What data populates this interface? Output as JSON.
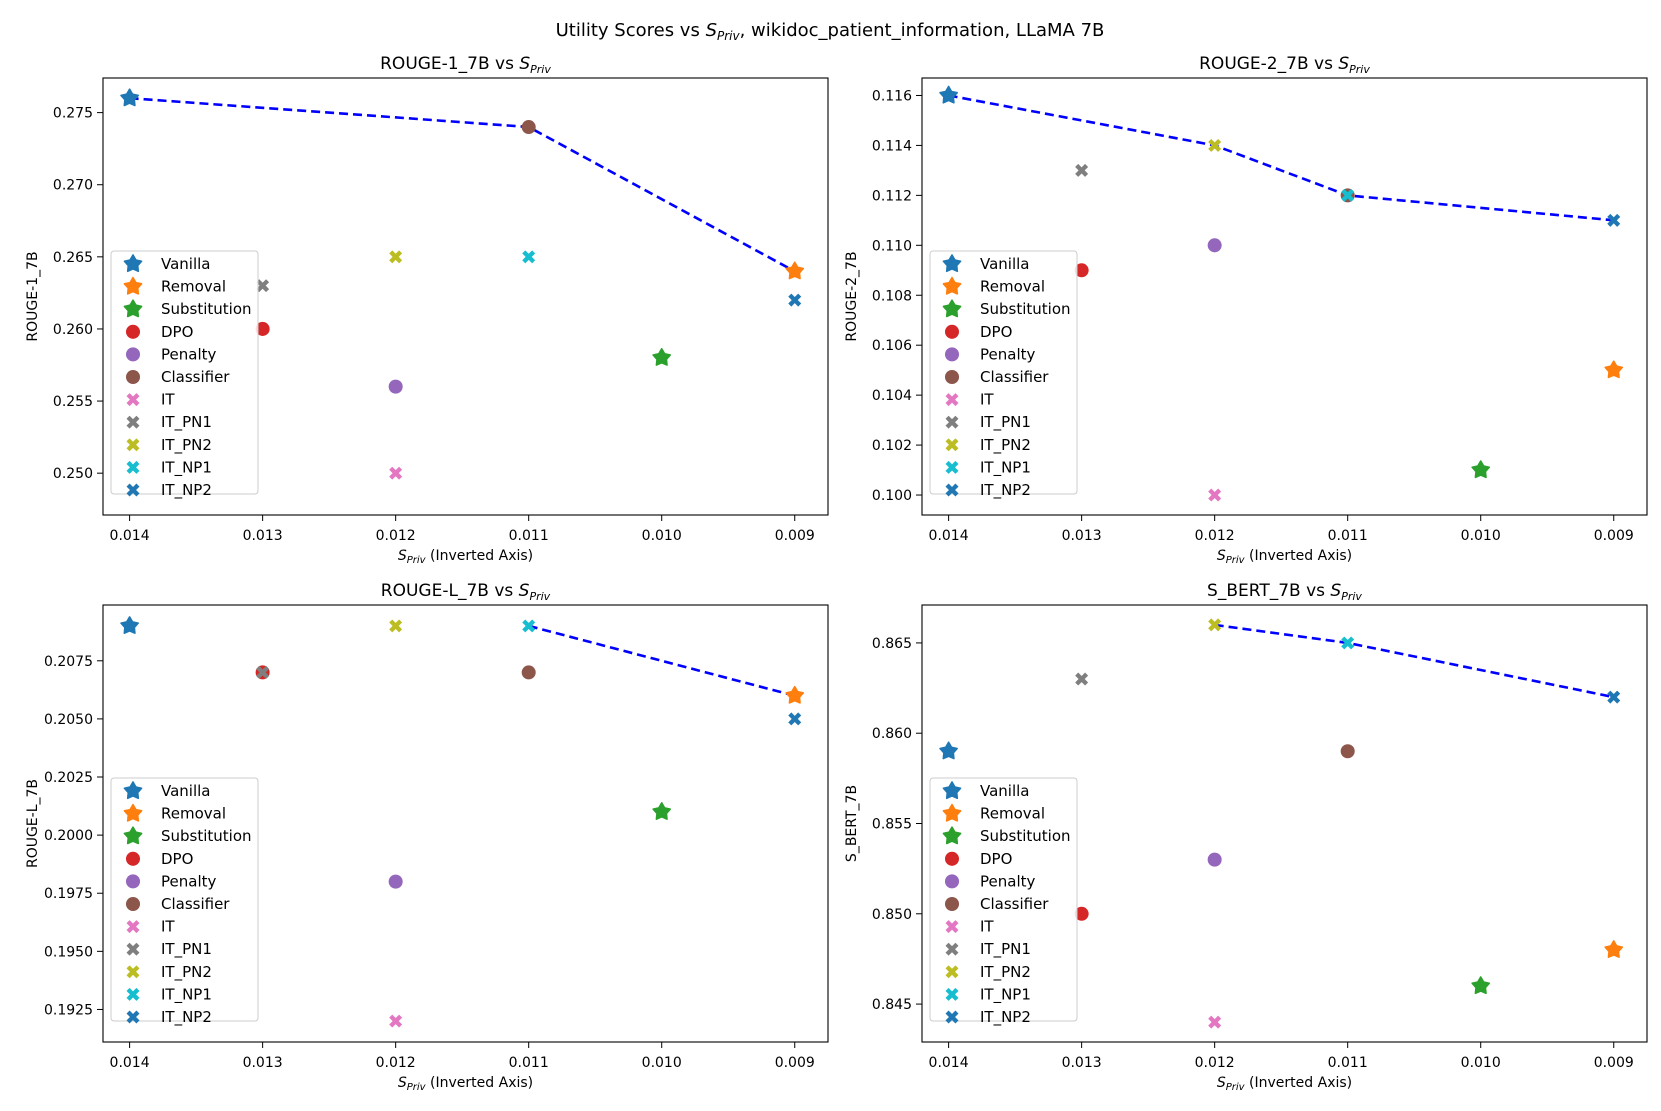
{
  "figure": {
    "suptitle": "Utility Scores vs S_Priv, wikidoc_patient_information, LLaMA 7B",
    "suptitle_parts": {
      "pre": "Utility Scores vs ",
      "sym": "S",
      "sub": "Priv",
      "post": ", wikidoc_patient_information, LLaMA 7B"
    }
  },
  "methods": [
    {
      "name": "Vanilla",
      "color": "#1f77b4",
      "marker": "star"
    },
    {
      "name": "Removal",
      "color": "#ff7f0e",
      "marker": "star"
    },
    {
      "name": "Substitution",
      "color": "#2ca02c",
      "marker": "star"
    },
    {
      "name": "DPO",
      "color": "#d62728",
      "marker": "circle"
    },
    {
      "name": "Penalty",
      "color": "#9467bd",
      "marker": "circle"
    },
    {
      "name": "Classifier",
      "color": "#8c564b",
      "marker": "circle"
    },
    {
      "name": "IT",
      "color": "#e377c2",
      "marker": "x"
    },
    {
      "name": "IT_PN1",
      "color": "#7f7f7f",
      "marker": "x"
    },
    {
      "name": "IT_PN2",
      "color": "#bcbd22",
      "marker": "x"
    },
    {
      "name": "IT_NP1",
      "color": "#17becf",
      "marker": "x"
    },
    {
      "name": "IT_NP2",
      "color": "#1f77b4",
      "marker": "x"
    }
  ],
  "frontier_style": {
    "color": "#0000ff",
    "dash": "dashed"
  },
  "chart_data": [
    {
      "type": "scatter",
      "title": "ROUGE-1_7B vs S_Priv",
      "title_parts": {
        "pre": "ROUGE-1_7B vs ",
        "sym": "S",
        "sub": "Priv"
      },
      "xlabel": "S_Priv (Inverted Axis)",
      "xlabel_parts": {
        "sym": "S",
        "sub": "Priv",
        "post": " (Inverted Axis)"
      },
      "ylabel": "ROUGE-1_7B",
      "x_inverted": true,
      "xlim": [
        0.0142,
        0.00875
      ],
      "xticks": [
        "0.014",
        "0.013",
        "0.012",
        "0.011",
        "0.010",
        "0.009"
      ],
      "ylim": [
        0.2471,
        0.2774
      ],
      "yticks": [
        "0.250",
        "0.255",
        "0.260",
        "0.265",
        "0.270",
        "0.275"
      ],
      "legend": "center-left",
      "points": [
        {
          "series": "Vanilla",
          "x": 0.014,
          "y": 0.276
        },
        {
          "series": "Removal",
          "x": 0.009,
          "y": 0.264
        },
        {
          "series": "Substitution",
          "x": 0.01,
          "y": 0.258
        },
        {
          "series": "DPO",
          "x": 0.013,
          "y": 0.26
        },
        {
          "series": "Penalty",
          "x": 0.012,
          "y": 0.256
        },
        {
          "series": "Classifier",
          "x": 0.011,
          "y": 0.274
        },
        {
          "series": "IT",
          "x": 0.012,
          "y": 0.25
        },
        {
          "series": "IT_PN1",
          "x": 0.013,
          "y": 0.263
        },
        {
          "series": "IT_PN2",
          "x": 0.012,
          "y": 0.265
        },
        {
          "series": "IT_NP1",
          "x": 0.011,
          "y": 0.265
        },
        {
          "series": "IT_NP2",
          "x": 0.009,
          "y": 0.262
        }
      ],
      "frontier": [
        [
          0.014,
          0.276
        ],
        [
          0.011,
          0.274
        ],
        [
          0.009,
          0.264
        ]
      ]
    },
    {
      "type": "scatter",
      "title": "ROUGE-2_7B vs S_Priv",
      "title_parts": {
        "pre": "ROUGE-2_7B vs ",
        "sym": "S",
        "sub": "Priv"
      },
      "xlabel": "S_Priv (Inverted Axis)",
      "xlabel_parts": {
        "sym": "S",
        "sub": "Priv",
        "post": " (Inverted Axis)"
      },
      "ylabel": "ROUGE-2_7B",
      "x_inverted": true,
      "xlim": [
        0.0142,
        0.00875
      ],
      "xticks": [
        "0.014",
        "0.013",
        "0.012",
        "0.011",
        "0.010",
        "0.009"
      ],
      "ylim": [
        0.0992,
        0.1167
      ],
      "yticks": [
        "0.100",
        "0.102",
        "0.104",
        "0.106",
        "0.108",
        "0.110",
        "0.112",
        "0.114",
        "0.116"
      ],
      "legend": "center-left",
      "points": [
        {
          "series": "Vanilla",
          "x": 0.014,
          "y": 0.116
        },
        {
          "series": "Removal",
          "x": 0.009,
          "y": 0.105
        },
        {
          "series": "Substitution",
          "x": 0.01,
          "y": 0.101
        },
        {
          "series": "DPO",
          "x": 0.013,
          "y": 0.109
        },
        {
          "series": "Penalty",
          "x": 0.012,
          "y": 0.11
        },
        {
          "series": "Classifier",
          "x": 0.011,
          "y": 0.112
        },
        {
          "series": "IT",
          "x": 0.012,
          "y": 0.1
        },
        {
          "series": "IT_PN1",
          "x": 0.013,
          "y": 0.113
        },
        {
          "series": "IT_PN2",
          "x": 0.012,
          "y": 0.114
        },
        {
          "series": "IT_NP1",
          "x": 0.011,
          "y": 0.112
        },
        {
          "series": "IT_NP2",
          "x": 0.009,
          "y": 0.111
        }
      ],
      "frontier": [
        [
          0.014,
          0.116
        ],
        [
          0.012,
          0.114
        ],
        [
          0.011,
          0.112
        ],
        [
          0.009,
          0.111
        ]
      ]
    },
    {
      "type": "scatter",
      "title": "ROUGE-L_7B vs S_Priv",
      "title_parts": {
        "pre": "ROUGE-L_7B vs ",
        "sym": "S",
        "sub": "Priv"
      },
      "xlabel": "S_Priv (Inverted Axis)",
      "xlabel_parts": {
        "sym": "S",
        "sub": "Priv",
        "post": " (Inverted Axis)"
      },
      "ylabel": "ROUGE-L_7B",
      "x_inverted": true,
      "xlim": [
        0.0142,
        0.00875
      ],
      "xticks": [
        "0.014",
        "0.013",
        "0.012",
        "0.011",
        "0.010",
        "0.009"
      ],
      "ylim": [
        0.1911,
        0.2099
      ],
      "yticks": [
        "0.1925",
        "0.1950",
        "0.1975",
        "0.2000",
        "0.2025",
        "0.2050",
        "0.2075"
      ],
      "legend": "center-left",
      "points": [
        {
          "series": "Vanilla",
          "x": 0.014,
          "y": 0.209
        },
        {
          "series": "Removal",
          "x": 0.009,
          "y": 0.206
        },
        {
          "series": "Substitution",
          "x": 0.01,
          "y": 0.201
        },
        {
          "series": "DPO",
          "x": 0.013,
          "y": 0.207
        },
        {
          "series": "Penalty",
          "x": 0.012,
          "y": 0.198
        },
        {
          "series": "Classifier",
          "x": 0.011,
          "y": 0.207
        },
        {
          "series": "IT",
          "x": 0.012,
          "y": 0.192
        },
        {
          "series": "IT_PN1",
          "x": 0.013,
          "y": 0.207
        },
        {
          "series": "IT_PN2",
          "x": 0.012,
          "y": 0.209
        },
        {
          "series": "IT_NP1",
          "x": 0.011,
          "y": 0.209
        },
        {
          "series": "IT_NP2",
          "x": 0.009,
          "y": 0.205
        }
      ],
      "frontier": [
        [
          0.011,
          0.209
        ],
        [
          0.009,
          0.206
        ]
      ]
    },
    {
      "type": "scatter",
      "title": "S_BERT_7B vs S_Priv",
      "title_parts": {
        "pre": "S_BERT_7B vs ",
        "sym": "S",
        "sub": "Priv"
      },
      "xlabel": "S_Priv (Inverted Axis)",
      "xlabel_parts": {
        "sym": "S",
        "sub": "Priv",
        "post": " (Inverted Axis)"
      },
      "ylabel": "S_BERT_7B",
      "x_inverted": true,
      "xlim": [
        0.0142,
        0.00875
      ],
      "xticks": [
        "0.014",
        "0.013",
        "0.012",
        "0.011",
        "0.010",
        "0.009"
      ],
      "ylim": [
        0.8429,
        0.8671
      ],
      "yticks": [
        "0.845",
        "0.850",
        "0.855",
        "0.860",
        "0.865"
      ],
      "legend": "center-left",
      "points": [
        {
          "series": "Vanilla",
          "x": 0.014,
          "y": 0.859
        },
        {
          "series": "Removal",
          "x": 0.009,
          "y": 0.848
        },
        {
          "series": "Substitution",
          "x": 0.01,
          "y": 0.846
        },
        {
          "series": "DPO",
          "x": 0.013,
          "y": 0.85
        },
        {
          "series": "Penalty",
          "x": 0.012,
          "y": 0.853
        },
        {
          "series": "Classifier",
          "x": 0.011,
          "y": 0.859
        },
        {
          "series": "IT",
          "x": 0.012,
          "y": 0.844
        },
        {
          "series": "IT_PN1",
          "x": 0.013,
          "y": 0.863
        },
        {
          "series": "IT_PN2",
          "x": 0.012,
          "y": 0.866
        },
        {
          "series": "IT_NP1",
          "x": 0.011,
          "y": 0.865
        },
        {
          "series": "IT_NP2",
          "x": 0.009,
          "y": 0.862
        }
      ],
      "frontier": [
        [
          0.012,
          0.866
        ],
        [
          0.011,
          0.865
        ],
        [
          0.009,
          0.862
        ]
      ]
    }
  ]
}
